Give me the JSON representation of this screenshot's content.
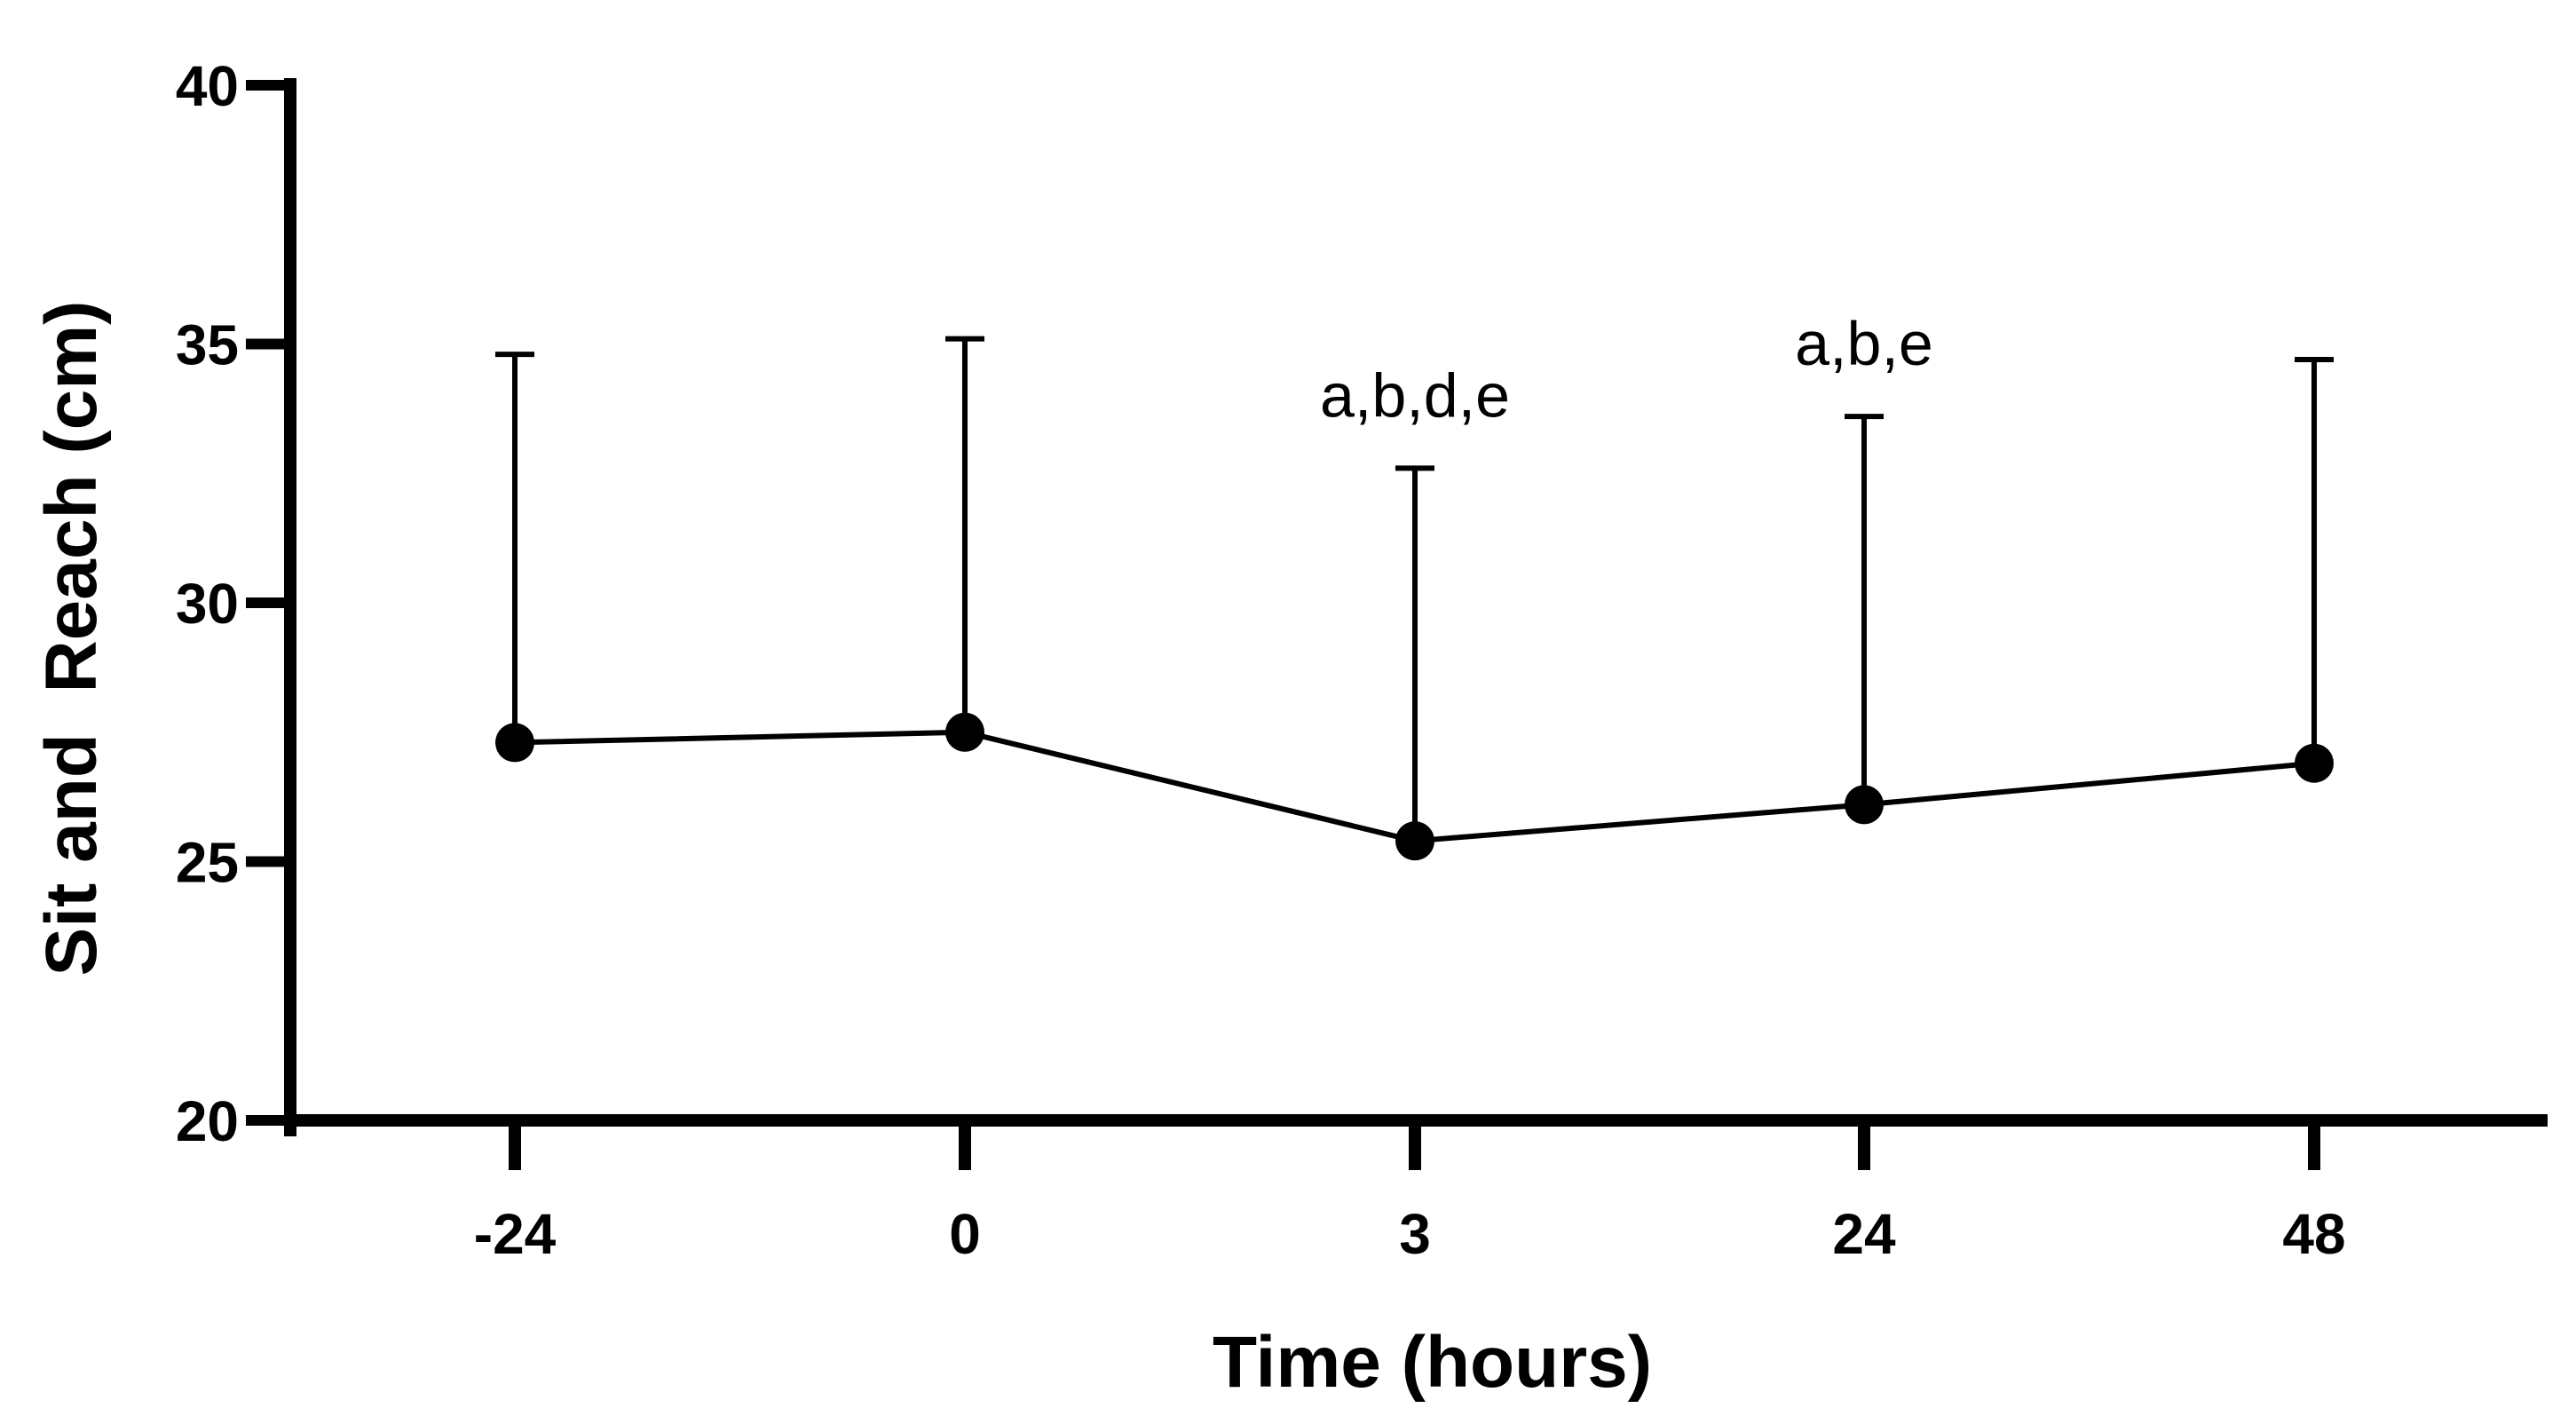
{
  "chart_data": {
    "type": "line",
    "title": "",
    "xlabel": "Time (hours)",
    "ylabel": "Sit and  Reach (cm)",
    "categories": [
      "-24",
      "0",
      "3",
      "24",
      "48"
    ],
    "series": [
      {
        "values": [
          27.3,
          27.5,
          25.4,
          26.1,
          26.9
        ],
        "error_upper": [
          34.8,
          35.1,
          32.6,
          33.6,
          34.7
        ]
      }
    ],
    "annotations": [
      "",
      "",
      "a,b,d,e",
      "a,b,e",
      ""
    ],
    "ylim": [
      20,
      40
    ],
    "yticks": [
      "20",
      "25",
      "30",
      "35",
      "40"
    ],
    "grid": false,
    "legend": "none",
    "colors": {
      "line": "#000000",
      "marker": "#000000",
      "axis": "#000000",
      "background": "#ffffff"
    }
  }
}
